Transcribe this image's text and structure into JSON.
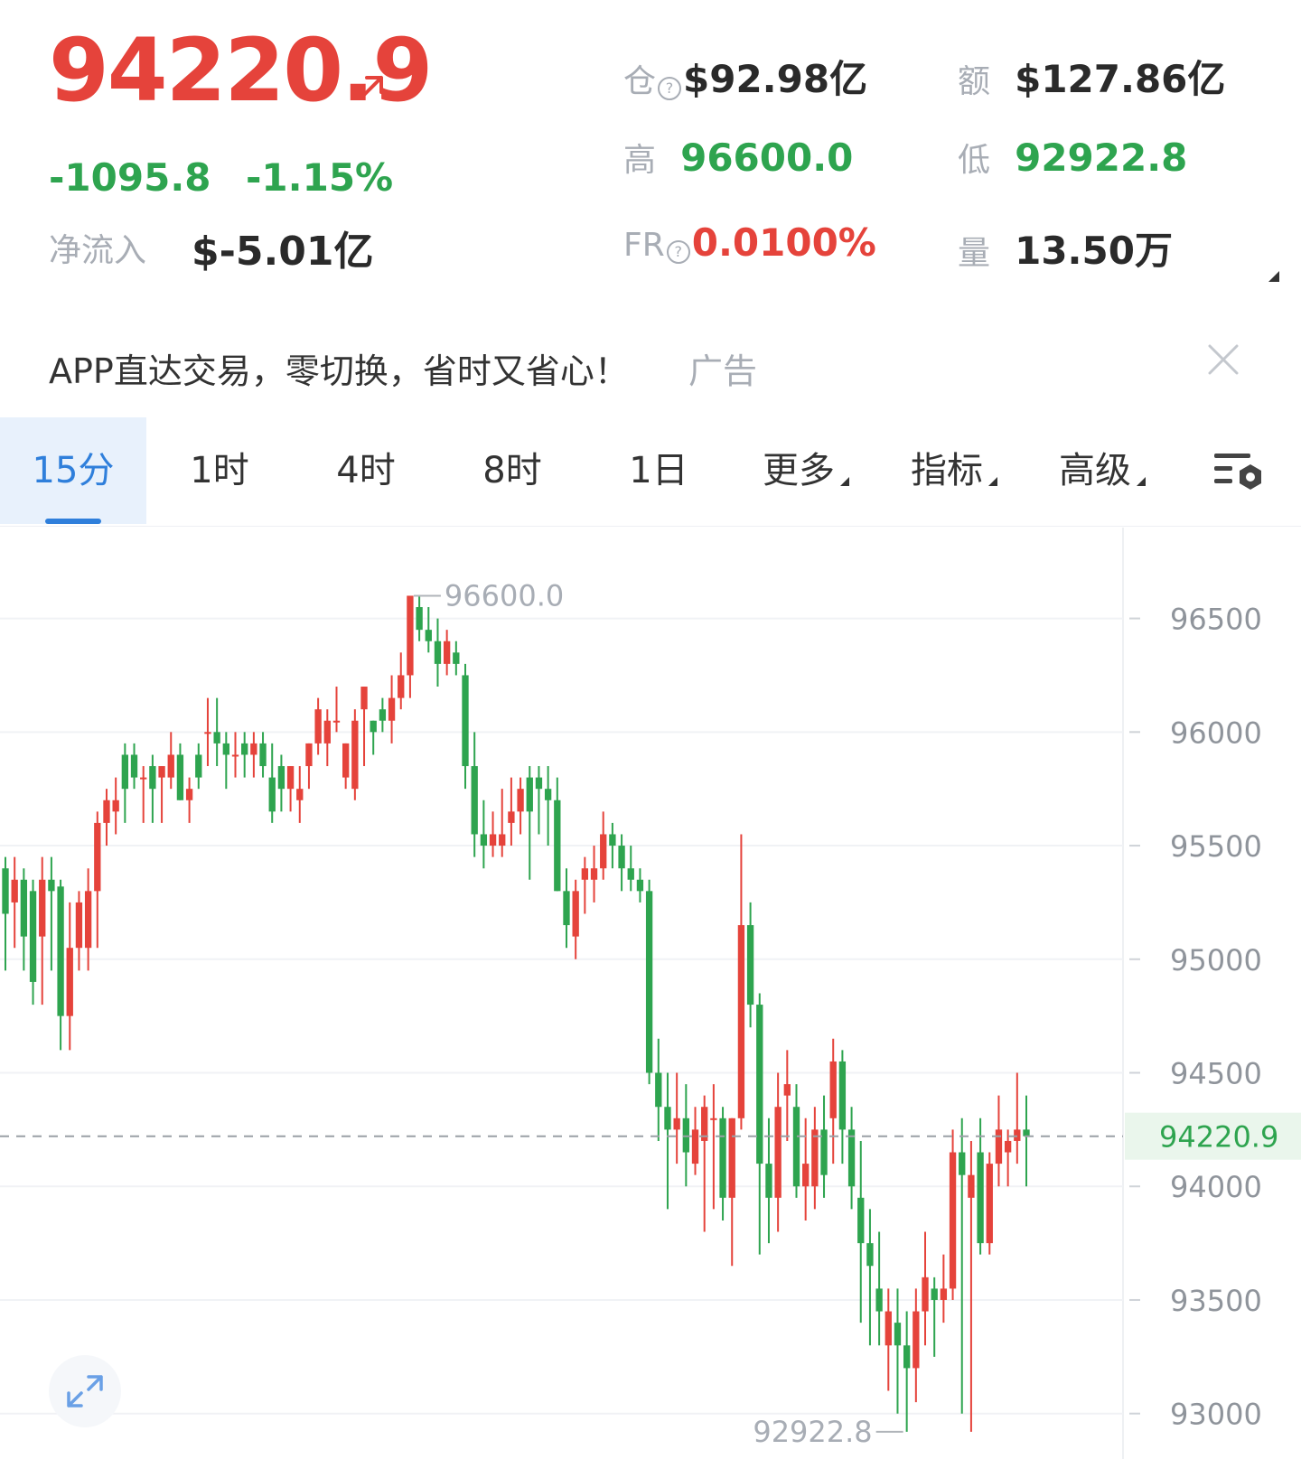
{
  "header": {
    "price": "94220.9",
    "change_abs": "-1095.8",
    "change_pct": "-1.15%",
    "net_inflow_label": "净流入",
    "net_inflow_value": "$-5.01亿"
  },
  "stats": {
    "open_interest_label": "仓",
    "open_interest_value": "$92.98亿",
    "turnover_label": "额",
    "turnover_value": "$127.86亿",
    "high_label": "高",
    "high_value": "96600.0",
    "low_label": "低",
    "low_value": "92922.8",
    "funding_rate_label": "FR",
    "funding_rate_value": "0.0100%",
    "volume_label": "量",
    "volume_value": "13.50万"
  },
  "ad": {
    "text": "APP直达交易，零切换，省时又省心！",
    "tag": "广告"
  },
  "tabs": [
    {
      "label": "15分",
      "active": true
    },
    {
      "label": "1时"
    },
    {
      "label": "4时"
    },
    {
      "label": "8时"
    },
    {
      "label": "1日"
    },
    {
      "label": "更多"
    },
    {
      "label": "指标"
    },
    {
      "label": "高级"
    }
  ],
  "colors": {
    "up": "#e5433b",
    "down": "#2ea44f",
    "accent": "#2f7fdb",
    "muted": "#a8adb5"
  },
  "icons": {
    "price_direction": "arrow-up-right-icon",
    "help": "question-circle-icon",
    "close": "close-icon",
    "chart_settings": "chart-settings-icon",
    "fullscreen": "expand-icon"
  },
  "chart_data": {
    "type": "candlestick",
    "ylim": [
      92800,
      96900
    ],
    "y_ticks": [
      "96500",
      "96000",
      "95500",
      "95000",
      "94500",
      "94000",
      "93500",
      "93000"
    ],
    "last_price": "94220.9",
    "high_marker": "96600.0",
    "low_marker": "92922.8",
    "candles_ohlc": [
      [
        95400,
        95450,
        94950,
        95200
      ],
      [
        95250,
        95450,
        95050,
        95350
      ],
      [
        95350,
        95400,
        94950,
        95100
      ],
      [
        95300,
        95350,
        94800,
        94900
      ],
      [
        95100,
        95450,
        94800,
        95350
      ],
      [
        95350,
        95450,
        94950,
        95300
      ],
      [
        95320,
        95350,
        94600,
        94750
      ],
      [
        94750,
        95250,
        94600,
        95050
      ],
      [
        95050,
        95300,
        94950,
        95250
      ],
      [
        95050,
        95400,
        94950,
        95300
      ],
      [
        95300,
        95650,
        95050,
        95600
      ],
      [
        95600,
        95750,
        95500,
        95700
      ],
      [
        95650,
        95800,
        95550,
        95700
      ],
      [
        95900,
        95950,
        95600,
        95750
      ],
      [
        95900,
        95950,
        95750,
        95800
      ],
      [
        95800,
        95850,
        95600,
        95800
      ],
      [
        95850,
        95900,
        95600,
        95750
      ],
      [
        95800,
        95850,
        95600,
        95850
      ],
      [
        95800,
        96000,
        95750,
        95900
      ],
      [
        95900,
        95950,
        95700,
        95700
      ],
      [
        95700,
        95800,
        95600,
        95750
      ],
      [
        95900,
        95950,
        95750,
        95800
      ],
      [
        96000,
        96150,
        95850,
        96000
      ],
      [
        96000,
        96150,
        95850,
        95950
      ],
      [
        95950,
        96000,
        95750,
        95900
      ],
      [
        95900,
        96000,
        95800,
        95900
      ],
      [
        95950,
        96000,
        95800,
        95900
      ],
      [
        95900,
        96000,
        95800,
        95950
      ],
      [
        95950,
        96000,
        95800,
        95850
      ],
      [
        95800,
        95950,
        95600,
        95650
      ],
      [
        95850,
        95900,
        95650,
        95750
      ],
      [
        95750,
        95850,
        95650,
        95850
      ],
      [
        95700,
        95850,
        95600,
        95750
      ],
      [
        95850,
        95950,
        95750,
        95950
      ],
      [
        95950,
        96150,
        95900,
        96100
      ],
      [
        95950,
        96100,
        95850,
        96050
      ],
      [
        96050,
        96200,
        96000,
        96050
      ],
      [
        95800,
        95950,
        95750,
        95950
      ],
      [
        95750,
        96100,
        95700,
        96050
      ],
      [
        96100,
        96200,
        95850,
        96200
      ],
      [
        96050,
        96050,
        95900,
        96000
      ],
      [
        96100,
        96150,
        96000,
        96050
      ],
      [
        96050,
        96250,
        95950,
        96150
      ],
      [
        96150,
        96350,
        96100,
        96250
      ],
      [
        96250,
        96600,
        96150,
        96600
      ],
      [
        96550,
        96600,
        96400,
        96450
      ],
      [
        96450,
        96550,
        96350,
        96400
      ],
      [
        96400,
        96500,
        96200,
        96300
      ],
      [
        96300,
        96450,
        96250,
        96400
      ],
      [
        96350,
        96400,
        96250,
        96300
      ],
      [
        96250,
        96300,
        95750,
        95850
      ],
      [
        95850,
        96000,
        95450,
        95550
      ],
      [
        95550,
        95700,
        95400,
        95500
      ],
      [
        95500,
        95650,
        95450,
        95550
      ],
      [
        95500,
        95750,
        95450,
        95550
      ],
      [
        95600,
        95800,
        95500,
        95650
      ],
      [
        95650,
        95800,
        95550,
        95750
      ],
      [
        95800,
        95850,
        95350,
        95650
      ],
      [
        95800,
        95850,
        95550,
        95750
      ],
      [
        95750,
        95850,
        95500,
        95700
      ],
      [
        95700,
        95800,
        95300,
        95300
      ],
      [
        95300,
        95400,
        95050,
        95150
      ],
      [
        95100,
        95350,
        95000,
        95300
      ],
      [
        95350,
        95450,
        95200,
        95400
      ],
      [
        95350,
        95500,
        95250,
        95400
      ],
      [
        95400,
        95650,
        95350,
        95550
      ],
      [
        95550,
        95600,
        95400,
        95500
      ],
      [
        95500,
        95550,
        95300,
        95400
      ],
      [
        95400,
        95500,
        95300,
        95350
      ],
      [
        95350,
        95400,
        95250,
        95300
      ],
      [
        95300,
        95350,
        94450,
        94500
      ],
      [
        94500,
        94650,
        94200,
        94350
      ],
      [
        94350,
        94500,
        93900,
        94250
      ],
      [
        94250,
        94500,
        94100,
        94300
      ],
      [
        94300,
        94450,
        94000,
        94150
      ],
      [
        94100,
        94350,
        94050,
        94250
      ],
      [
        94200,
        94400,
        93800,
        94350
      ],
      [
        94300,
        94450,
        93900,
        94300
      ],
      [
        94300,
        94350,
        93850,
        93950
      ],
      [
        93950,
        94300,
        93650,
        94300
      ],
      [
        94300,
        95550,
        94250,
        95150
      ],
      [
        95150,
        95250,
        94700,
        94800
      ],
      [
        94800,
        94850,
        93700,
        94100
      ],
      [
        94100,
        94300,
        93750,
        93950
      ],
      [
        93950,
        94500,
        93800,
        94350
      ],
      [
        94400,
        94600,
        94200,
        94450
      ],
      [
        94350,
        94450,
        93950,
        94000
      ],
      [
        94000,
        94300,
        93850,
        94100
      ],
      [
        94000,
        94350,
        93900,
        94250
      ],
      [
        94250,
        94400,
        93950,
        94050
      ],
      [
        94300,
        94650,
        94100,
        94550
      ],
      [
        94550,
        94600,
        94100,
        94250
      ],
      [
        94250,
        94350,
        93900,
        94000
      ],
      [
        93950,
        94200,
        93400,
        93750
      ],
      [
        93750,
        93900,
        93300,
        93650
      ],
      [
        93550,
        93800,
        93300,
        93450
      ],
      [
        93300,
        93550,
        93100,
        93450
      ],
      [
        93400,
        93550,
        93000,
        93300
      ],
      [
        93300,
        93450,
        92920,
        93200
      ],
      [
        93200,
        93550,
        93050,
        93450
      ],
      [
        93450,
        93800,
        93300,
        93600
      ],
      [
        93550,
        93600,
        93250,
        93500
      ],
      [
        93500,
        93700,
        93400,
        93550
      ],
      [
        93550,
        94250,
        93500,
        94150
      ],
      [
        94150,
        94300,
        93000,
        94050
      ],
      [
        93950,
        94200,
        92920,
        94050
      ],
      [
        94150,
        94300,
        93700,
        93750
      ],
      [
        93750,
        94150,
        93700,
        94100
      ],
      [
        94100,
        94400,
        94000,
        94250
      ],
      [
        94150,
        94250,
        94000,
        94200
      ],
      [
        94200,
        94500,
        94100,
        94250
      ],
      [
        94250,
        94400,
        94000,
        94220.9
      ]
    ]
  }
}
